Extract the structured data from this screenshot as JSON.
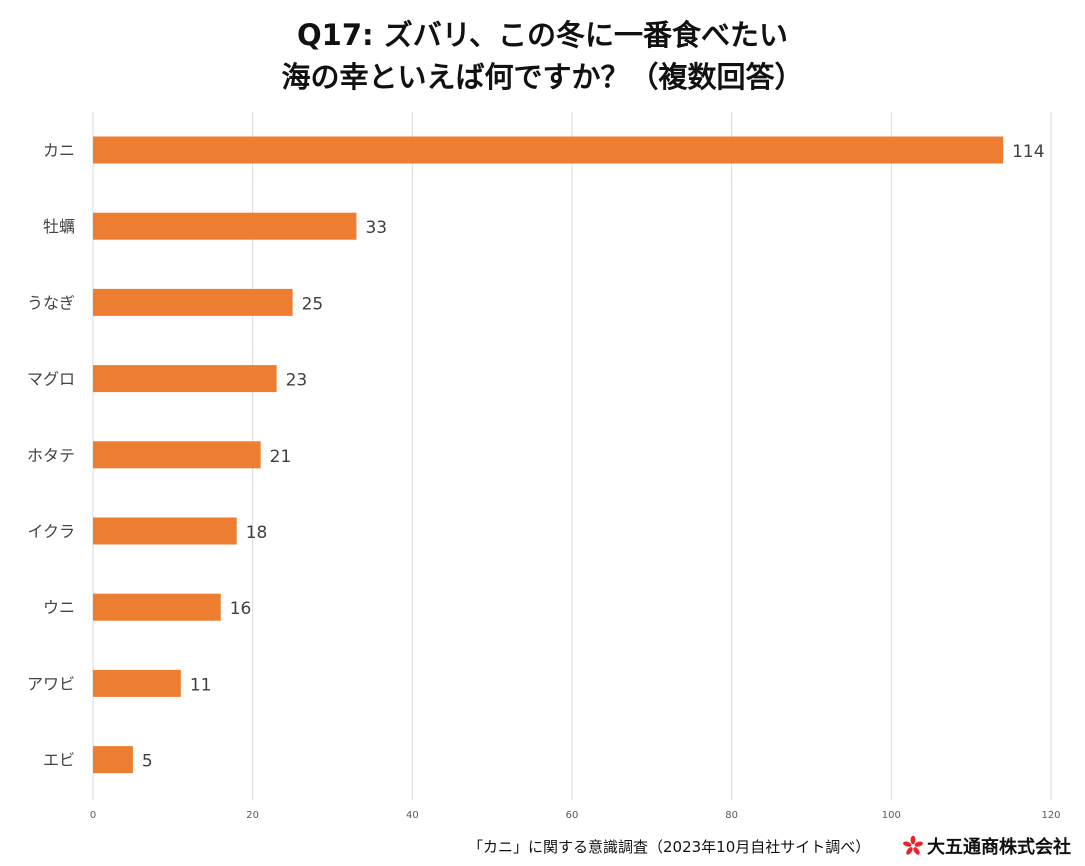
{
  "title": {
    "line1": "Q17: ズバリ、この冬に一番食べたい",
    "line2": "海の幸といえば何ですか？（複数回答）"
  },
  "chart_data": {
    "type": "bar",
    "orientation": "horizontal",
    "categories": [
      "カニ",
      "牡蠣",
      "うなぎ",
      "マグロ",
      "ホタテ",
      "イクラ",
      "ウニ",
      "アワビ",
      "エビ"
    ],
    "values": [
      114,
      33,
      25,
      23,
      21,
      18,
      16,
      11,
      5
    ],
    "xlim": [
      0,
      120
    ],
    "xticks": [
      "0",
      "20",
      "40",
      "60",
      "80",
      "100",
      "120"
    ],
    "grid": true,
    "legend": "none"
  },
  "footer": {
    "source": "「カニ」に関する意識調査（2023年10月自社サイト調べ）",
    "company": "大五通商株式会社",
    "logo_icon": "flower-logo-icon"
  },
  "colors": {
    "bar": "#ED7D31",
    "grid": "#D9D9D9",
    "logo": "#E8232A"
  }
}
